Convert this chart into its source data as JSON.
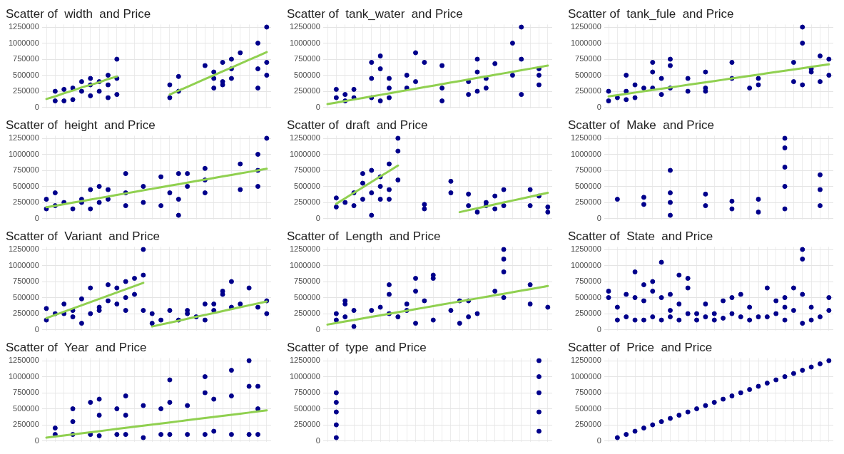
{
  "chart_data": [
    {
      "type": "scatter",
      "title": "Scatter of  width  and Price",
      "categories": [
        null,
        null,
        null,
        null,
        null,
        null,
        null,
        null,
        null,
        null,
        null,
        null,
        null,
        null,
        null,
        null,
        null,
        null,
        null,
        null,
        null,
        null,
        null,
        null,
        null,
        null
      ],
      "ylim": [
        -20000,
        1290000
      ],
      "yticks": [
        0,
        250000,
        500000,
        750000,
        1000000,
        1250000
      ],
      "grid": true,
      "legend": false,
      "tick_labels": "y",
      "marker": "circle",
      "series": [
        {
          "color": "#00008b",
          "values": [
            null,
            100000,
            100000,
            120000,
            250000,
            180000,
            250000,
            150000,
            200000,
            null,
            null,
            null,
            null,
            null,
            150000,
            250000,
            null,
            null,
            650000,
            300000,
            350000,
            450000,
            850000,
            null,
            300000,
            500000
          ]
        },
        {
          "color": "#00008b",
          "values": [
            null,
            250000,
            280000,
            300000,
            400000,
            350000,
            400000,
            350000,
            450000,
            null,
            null,
            null,
            null,
            null,
            350000,
            480000,
            null,
            null,
            null,
            450000,
            400000,
            600000,
            null,
            null,
            600000,
            700000
          ]
        },
        {
          "color": "#00008b",
          "values": [
            null,
            null,
            null,
            null,
            null,
            450000,
            null,
            500000,
            750000,
            null,
            null,
            null,
            null,
            null,
            null,
            null,
            null,
            null,
            null,
            550000,
            700000,
            750000,
            null,
            null,
            1000000,
            1250000
          ]
        },
        {
          "type": "line",
          "marker": "none",
          "color": "#90d050",
          "values": [
            130000,
            170000,
            220000,
            260000,
            310000,
            350000,
            390000,
            440000,
            480000,
            null,
            null,
            null,
            null,
            null,
            null,
            null,
            null,
            null,
            null,
            null,
            null,
            null,
            null,
            null,
            null,
            null
          ]
        },
        {
          "type": "line",
          "marker": "none",
          "color": "#90d050",
          "values": [
            null,
            null,
            null,
            null,
            null,
            null,
            null,
            null,
            null,
            null,
            null,
            null,
            null,
            null,
            200000,
            260000,
            320000,
            380000,
            440000,
            500000,
            560000,
            620000,
            680000,
            740000,
            800000,
            860000
          ]
        }
      ]
    },
    {
      "type": "scatter",
      "title": "Scatter of  tank_water  and Price",
      "categories": [
        null,
        null,
        null,
        null,
        null,
        null,
        null,
        null,
        null,
        null,
        null,
        null,
        null,
        null,
        null,
        null,
        null,
        null,
        null,
        null,
        null,
        null,
        null,
        null,
        null,
        null
      ],
      "ylim": [
        -20000,
        1290000
      ],
      "yticks": [
        0,
        250000,
        500000,
        750000,
        1000000,
        1250000
      ],
      "grid": true,
      "legend": false,
      "tick_labels": "y",
      "marker": "circle",
      "series": [
        {
          "color": "#00008b",
          "values": [
            null,
            150000,
            100000,
            150000,
            null,
            150000,
            100000,
            150000,
            null,
            300000,
            400000,
            700000,
            null,
            100000,
            null,
            null,
            200000,
            250000,
            300000,
            680000,
            null,
            500000,
            200000,
            null,
            350000,
            null
          ]
        },
        {
          "color": "#00008b",
          "values": [
            null,
            280000,
            200000,
            280000,
            null,
            450000,
            600000,
            300000,
            null,
            500000,
            850000,
            null,
            null,
            300000,
            null,
            null,
            400000,
            550000,
            450000,
            null,
            null,
            1000000,
            750000,
            null,
            500000,
            null
          ]
        },
        {
          "color": "#00008b",
          "values": [
            null,
            null,
            null,
            null,
            null,
            700000,
            800000,
            450000,
            null,
            null,
            null,
            null,
            null,
            650000,
            null,
            null,
            null,
            750000,
            null,
            null,
            null,
            null,
            1250000,
            null,
            600000,
            null
          ]
        },
        {
          "type": "line",
          "marker": "none",
          "color": "#90d050",
          "values": [
            50000,
            74000,
            98000,
            122000,
            146000,
            170000,
            194000,
            218000,
            242000,
            266000,
            290000,
            314000,
            338000,
            362000,
            386000,
            410000,
            434000,
            458000,
            482000,
            506000,
            530000,
            554000,
            578000,
            602000,
            626000,
            650000
          ]
        }
      ]
    },
    {
      "type": "scatter",
      "title": "Scatter of  tank_fule  and Price",
      "categories": [
        null,
        null,
        null,
        null,
        null,
        null,
        null,
        null,
        null,
        null,
        null,
        null,
        null,
        null,
        null,
        null,
        null,
        null,
        null,
        null,
        null,
        null,
        null,
        null,
        null,
        null
      ],
      "ylim": [
        -20000,
        1290000
      ],
      "yticks": [
        0,
        250000,
        500000,
        750000,
        1000000,
        1250000
      ],
      "grid": true,
      "legend": false,
      "tick_labels": "y",
      "marker": "circle",
      "series": [
        {
          "color": "#00008b",
          "values": [
            100000,
            150000,
            120000,
            150000,
            300000,
            300000,
            200000,
            300000,
            null,
            250000,
            null,
            250000,
            null,
            null,
            450000,
            null,
            300000,
            350000,
            null,
            null,
            null,
            400000,
            350000,
            550000,
            400000,
            500000
          ]
        },
        {
          "color": "#00008b",
          "values": [
            250000,
            null,
            250000,
            350000,
            null,
            550000,
            450000,
            650000,
            null,
            450000,
            null,
            300000,
            null,
            null,
            700000,
            null,
            null,
            450000,
            null,
            null,
            null,
            700000,
            1000000,
            600000,
            800000,
            750000
          ]
        },
        {
          "color": "#00008b",
          "values": [
            null,
            null,
            500000,
            null,
            null,
            700000,
            null,
            750000,
            null,
            null,
            null,
            550000,
            null,
            null,
            null,
            null,
            null,
            null,
            null,
            null,
            null,
            null,
            1250000,
            null,
            null,
            null
          ]
        },
        {
          "type": "line",
          "marker": "none",
          "color": "#90d050",
          "values": [
            170000,
            190000,
            210000,
            230000,
            250000,
            270000,
            290000,
            310000,
            330000,
            350000,
            370000,
            390000,
            410000,
            430000,
            450000,
            470000,
            490000,
            510000,
            530000,
            550000,
            570000,
            590000,
            610000,
            630000,
            650000,
            670000
          ]
        }
      ]
    },
    {
      "type": "scatter",
      "title": "Scatter of  height  and Price",
      "categories": [
        null,
        null,
        null,
        null,
        null,
        null,
        null,
        null,
        null,
        null,
        null,
        null,
        null,
        null,
        null,
        null,
        null,
        null,
        null,
        null,
        null,
        null,
        null,
        null,
        null,
        null
      ],
      "ylim": [
        -20000,
        1290000
      ],
      "yticks": [
        0,
        250000,
        500000,
        750000,
        1000000,
        1250000
      ],
      "grid": true,
      "legend": false,
      "tick_labels": "y",
      "marker": "circle",
      "series": [
        {
          "color": "#00008b",
          "values": [
            150000,
            200000,
            250000,
            150000,
            250000,
            150000,
            250000,
            300000,
            null,
            200000,
            null,
            250000,
            null,
            200000,
            400000,
            50000,
            500000,
            null,
            400000,
            null,
            null,
            null,
            450000,
            null,
            500000,
            1250000
          ]
        },
        {
          "color": "#00008b",
          "values": [
            300000,
            400000,
            null,
            null,
            300000,
            450000,
            500000,
            450000,
            null,
            400000,
            null,
            500000,
            null,
            650000,
            null,
            300000,
            700000,
            null,
            600000,
            null,
            null,
            null,
            850000,
            null,
            750000,
            null
          ]
        },
        {
          "color": "#00008b",
          "values": [
            null,
            null,
            null,
            null,
            null,
            null,
            null,
            null,
            null,
            700000,
            null,
            null,
            null,
            null,
            null,
            700000,
            null,
            null,
            780000,
            null,
            null,
            null,
            null,
            null,
            1000000,
            null
          ]
        },
        {
          "type": "line",
          "marker": "none",
          "color": "#90d050",
          "values": [
            175000,
            199000,
            223000,
            247000,
            271000,
            295000,
            319000,
            343000,
            367000,
            391000,
            415000,
            439000,
            463000,
            487000,
            511000,
            535000,
            559000,
            583000,
            607000,
            631000,
            655000,
            679000,
            703000,
            727000,
            751000,
            775000
          ]
        }
      ]
    },
    {
      "type": "scatter",
      "title": "Scatter of  draft  and Price",
      "categories": [
        null,
        null,
        null,
        null,
        null,
        null,
        null,
        null,
        null,
        null,
        null,
        null,
        null,
        null,
        null,
        null,
        null,
        null,
        null,
        null,
        null,
        null,
        null,
        null,
        null,
        null
      ],
      "ylim": [
        -20000,
        1290000
      ],
      "yticks": [
        0,
        250000,
        500000,
        750000,
        1000000,
        1250000
      ],
      "grid": true,
      "legend": false,
      "tick_labels": "y",
      "marker": "circle",
      "series": [
        {
          "color": "#00008b",
          "values": [
            null,
            180000,
            250000,
            200000,
            300000,
            50000,
            300000,
            300000,
            600000,
            null,
            null,
            150000,
            null,
            null,
            400000,
            null,
            200000,
            100000,
            200000,
            150000,
            200000,
            null,
            null,
            200000,
            350000,
            100000
          ]
        },
        {
          "color": "#00008b",
          "values": [
            null,
            320000,
            null,
            400000,
            550000,
            400000,
            500000,
            450000,
            1050000,
            null,
            null,
            220000,
            null,
            null,
            580000,
            null,
            380000,
            null,
            250000,
            350000,
            450000,
            null,
            null,
            450000,
            null,
            180000
          ]
        },
        {
          "color": "#00008b",
          "values": [
            null,
            null,
            null,
            null,
            700000,
            750000,
            650000,
            850000,
            1250000,
            null,
            null,
            null,
            null,
            null,
            null,
            null,
            null,
            null,
            null,
            null,
            null,
            null,
            null,
            null,
            null,
            null
          ]
        },
        {
          "type": "line",
          "marker": "none",
          "color": "#90d050",
          "values": [
            null,
            230000,
            315000,
            400000,
            485000,
            570000,
            655000,
            740000,
            825000,
            null,
            null,
            null,
            null,
            null,
            null,
            null,
            null,
            null,
            null,
            null,
            null,
            null,
            null,
            null,
            null,
            null
          ]
        },
        {
          "type": "line",
          "marker": "none",
          "color": "#90d050",
          "values": [
            null,
            null,
            null,
            null,
            null,
            null,
            null,
            null,
            null,
            null,
            null,
            null,
            null,
            null,
            null,
            100000,
            130000,
            160000,
            190000,
            220000,
            250000,
            280000,
            310000,
            340000,
            370000,
            400000
          ]
        }
      ]
    },
    {
      "type": "scatter",
      "title": "Scatter of  Make  and Price",
      "categories": [
        null,
        null,
        null,
        null,
        null,
        null,
        null,
        null,
        null,
        null,
        null,
        null,
        null,
        null,
        null,
        null,
        null,
        null,
        null,
        null,
        null,
        null,
        null,
        null,
        null,
        null
      ],
      "ylim": [
        -20000,
        1290000
      ],
      "yticks": [
        0,
        250000,
        500000,
        750000,
        1000000,
        1250000
      ],
      "grid": true,
      "legend": false,
      "tick_labels": "y",
      "marker": "circle",
      "series": [
        {
          "color": "#00008b",
          "values": [
            null,
            300000,
            null,
            null,
            220000,
            null,
            null,
            50000,
            null,
            null,
            null,
            200000,
            null,
            null,
            150000,
            null,
            null,
            100000,
            null,
            null,
            150000,
            null,
            null,
            null,
            200000,
            null
          ]
        },
        {
          "color": "#00008b",
          "values": [
            null,
            null,
            null,
            null,
            330000,
            null,
            null,
            250000,
            null,
            null,
            null,
            380000,
            null,
            null,
            270000,
            null,
            null,
            300000,
            null,
            null,
            500000,
            null,
            null,
            null,
            450000,
            null
          ]
        },
        {
          "color": "#00008b",
          "values": [
            null,
            null,
            null,
            null,
            null,
            null,
            null,
            400000,
            null,
            null,
            null,
            null,
            null,
            null,
            null,
            null,
            null,
            null,
            null,
            null,
            800000,
            null,
            null,
            null,
            680000,
            null
          ]
        },
        {
          "color": "#00008b",
          "values": [
            null,
            null,
            null,
            null,
            null,
            null,
            null,
            750000,
            null,
            null,
            null,
            null,
            null,
            null,
            null,
            null,
            null,
            null,
            null,
            null,
            1100000,
            null,
            null,
            null,
            null,
            null
          ]
        },
        {
          "color": "#00008b",
          "values": [
            null,
            null,
            null,
            null,
            null,
            null,
            null,
            null,
            null,
            null,
            null,
            null,
            null,
            null,
            null,
            null,
            null,
            null,
            null,
            null,
            1250000,
            null,
            null,
            null,
            null,
            null
          ]
        }
      ]
    },
    {
      "type": "scatter",
      "title": "Scatter of  Variant  and Price",
      "categories": [
        null,
        null,
        null,
        null,
        null,
        null,
        null,
        null,
        null,
        null,
        null,
        null,
        null,
        null,
        null,
        null,
        null,
        null,
        null,
        null,
        null,
        null,
        null,
        null,
        null,
        null
      ],
      "ylim": [
        -20000,
        1290000
      ],
      "yticks": [
        0,
        250000,
        500000,
        750000,
        1000000,
        1250000
      ],
      "grid": true,
      "legend": false,
      "tick_labels": "y",
      "marker": "circle",
      "series": [
        {
          "color": "#00008b",
          "values": [
            150000,
            250000,
            250000,
            200000,
            100000,
            250000,
            300000,
            450000,
            400000,
            300000,
            550000,
            300000,
            100000,
            150000,
            300000,
            150000,
            250000,
            200000,
            150000,
            300000,
            550000,
            350000,
            400000,
            650000,
            350000,
            250000
          ]
        },
        {
          "color": "#00008b",
          "values": [
            330000,
            null,
            400000,
            300000,
            480000,
            650000,
            350000,
            700000,
            650000,
            500000,
            800000,
            850000,
            250000,
            null,
            null,
            null,
            300000,
            null,
            400000,
            400000,
            600000,
            750000,
            null,
            null,
            null,
            450000
          ]
        },
        {
          "color": "#00008b",
          "values": [
            null,
            null,
            null,
            null,
            null,
            null,
            null,
            null,
            null,
            750000,
            null,
            1250000,
            null,
            null,
            null,
            null,
            null,
            null,
            null,
            null,
            null,
            null,
            null,
            null,
            null,
            null
          ]
        },
        {
          "type": "line",
          "marker": "none",
          "color": "#90d050",
          "values": [
            180000,
            230000,
            280000,
            330000,
            380000,
            430000,
            480000,
            530000,
            580000,
            630000,
            680000,
            730000,
            null,
            null,
            null,
            null,
            null,
            null,
            null,
            null,
            null,
            null,
            null,
            null,
            null,
            null
          ]
        },
        {
          "type": "line",
          "marker": "none",
          "color": "#90d050",
          "values": [
            null,
            null,
            null,
            null,
            null,
            null,
            null,
            null,
            null,
            null,
            null,
            null,
            50000,
            80000,
            110000,
            140000,
            170000,
            200000,
            230000,
            260000,
            290000,
            320000,
            350000,
            380000,
            410000,
            440000
          ]
        }
      ]
    },
    {
      "type": "scatter",
      "title": "Scatter of  Length  and Price",
      "categories": [
        null,
        null,
        null,
        null,
        null,
        null,
        null,
        null,
        null,
        null,
        null,
        null,
        null,
        null,
        null,
        null,
        null,
        null,
        null,
        null,
        null,
        null,
        null,
        null,
        null,
        null
      ],
      "ylim": [
        -20000,
        1290000
      ],
      "yticks": [
        0,
        250000,
        500000,
        750000,
        1000000,
        1250000
      ],
      "grid": true,
      "legend": false,
      "tick_labels": "y",
      "marker": "circle",
      "series": [
        {
          "color": "#00008b",
          "values": [
            null,
            150000,
            200000,
            50000,
            null,
            300000,
            350000,
            250000,
            200000,
            300000,
            100000,
            450000,
            150000,
            null,
            300000,
            100000,
            200000,
            250000,
            null,
            600000,
            500000,
            null,
            null,
            400000,
            null,
            350000
          ]
        },
        {
          "color": "#00008b",
          "values": [
            null,
            250000,
            400000,
            300000,
            null,
            null,
            null,
            550000,
            null,
            400000,
            600000,
            null,
            800000,
            null,
            null,
            450000,
            450000,
            null,
            null,
            null,
            900000,
            null,
            null,
            700000,
            null,
            null
          ]
        },
        {
          "color": "#00008b",
          "values": [
            null,
            null,
            450000,
            null,
            null,
            null,
            null,
            700000,
            null,
            null,
            800000,
            null,
            850000,
            null,
            null,
            null,
            null,
            null,
            null,
            null,
            1100000,
            null,
            null,
            null,
            null,
            null
          ]
        },
        {
          "color": "#00008b",
          "values": [
            null,
            null,
            null,
            null,
            null,
            null,
            null,
            null,
            null,
            null,
            null,
            null,
            null,
            null,
            null,
            null,
            null,
            null,
            null,
            null,
            1250000,
            null,
            null,
            null,
            null,
            null
          ]
        },
        {
          "type": "line",
          "marker": "none",
          "color": "#90d050",
          "values": [
            80000,
            104000,
            128000,
            152000,
            176000,
            200000,
            224000,
            248000,
            272000,
            296000,
            320000,
            344000,
            368000,
            392000,
            416000,
            440000,
            464000,
            488000,
            512000,
            536000,
            560000,
            584000,
            608000,
            632000,
            656000,
            680000
          ]
        }
      ]
    },
    {
      "type": "scatter",
      "title": "Scatter of  State  and Price",
      "categories": [
        null,
        null,
        null,
        null,
        null,
        null,
        null,
        null,
        null,
        null,
        null,
        null,
        null,
        null,
        null,
        null,
        null,
        null,
        null,
        null,
        null,
        null,
        null,
        null,
        null,
        null
      ],
      "ylim": [
        -20000,
        1290000
      ],
      "yticks": [
        0,
        250000,
        500000,
        750000,
        1000000,
        1250000
      ],
      "grid": true,
      "legend": false,
      "tick_labels": "y",
      "marker": "circle",
      "series": [
        {
          "color": "#00008b",
          "values": [
            500000,
            150000,
            200000,
            150000,
            150000,
            200000,
            150000,
            200000,
            150000,
            250000,
            150000,
            200000,
            150000,
            180000,
            250000,
            200000,
            150000,
            200000,
            200000,
            250000,
            150000,
            300000,
            100000,
            150000,
            200000,
            300000
          ]
        },
        {
          "color": "#00008b",
          "values": [
            600000,
            350000,
            550000,
            500000,
            450000,
            600000,
            500000,
            300000,
            400000,
            650000,
            250000,
            400000,
            250000,
            450000,
            500000,
            550000,
            350000,
            null,
            650000,
            450000,
            350000,
            650000,
            550000,
            350000,
            null,
            500000
          ]
        },
        {
          "color": "#00008b",
          "values": [
            null,
            null,
            null,
            900000,
            700000,
            750000,
            1050000,
            550000,
            850000,
            800000,
            null,
            null,
            null,
            null,
            null,
            null,
            null,
            null,
            null,
            null,
            500000,
            null,
            1100000,
            null,
            null,
            null
          ]
        },
        {
          "color": "#00008b",
          "values": [
            null,
            null,
            null,
            null,
            null,
            null,
            null,
            null,
            null,
            null,
            null,
            null,
            null,
            null,
            null,
            null,
            null,
            null,
            null,
            null,
            null,
            null,
            1250000,
            null,
            null,
            null
          ]
        }
      ]
    },
    {
      "type": "scatter",
      "title": "Scatter of  Year  and Price",
      "categories": [
        null,
        null,
        null,
        null,
        null,
        null,
        null,
        null,
        null,
        null,
        null,
        null,
        null,
        null,
        null,
        null,
        null,
        null,
        null,
        null,
        null,
        null,
        null,
        null,
        null,
        null
      ],
      "ylim": [
        -20000,
        1290000
      ],
      "yticks": [
        0,
        250000,
        500000,
        750000,
        1000000,
        1250000
      ],
      "grid": true,
      "legend": false,
      "tick_labels": "y",
      "marker": "circle",
      "series": [
        {
          "color": "#00008b",
          "values": [
            null,
            100000,
            null,
            100000,
            null,
            100000,
            80000,
            null,
            100000,
            100000,
            null,
            50000,
            null,
            100000,
            100000,
            null,
            100000,
            null,
            100000,
            150000,
            null,
            100000,
            null,
            100000,
            100000,
            null
          ]
        },
        {
          "color": "#00008b",
          "values": [
            null,
            200000,
            null,
            300000,
            null,
            600000,
            400000,
            null,
            500000,
            400000,
            null,
            550000,
            null,
            500000,
            600000,
            null,
            550000,
            null,
            750000,
            650000,
            null,
            700000,
            null,
            850000,
            500000,
            null
          ]
        },
        {
          "color": "#00008b",
          "values": [
            null,
            null,
            null,
            500000,
            null,
            null,
            650000,
            null,
            null,
            700000,
            null,
            null,
            null,
            null,
            950000,
            null,
            null,
            null,
            1000000,
            null,
            null,
            1100000,
            null,
            1250000,
            850000,
            null
          ]
        },
        {
          "type": "line",
          "marker": "none",
          "color": "#90d050",
          "values": [
            50000,
            67000,
            84000,
            101000,
            118000,
            135000,
            152000,
            169000,
            186000,
            203000,
            220000,
            237000,
            254000,
            271000,
            288000,
            305000,
            322000,
            339000,
            356000,
            373000,
            390000,
            407000,
            424000,
            441000,
            458000,
            475000
          ]
        }
      ]
    },
    {
      "type": "scatter",
      "title": "Scatter of  type  and Price",
      "categories": [
        null,
        null,
        null,
        null,
        null,
        null,
        null,
        null,
        null,
        null,
        null,
        null,
        null,
        null,
        null,
        null,
        null,
        null,
        null,
        null,
        null,
        null,
        null,
        null,
        null,
        null
      ],
      "ylim": [
        -20000,
        1290000
      ],
      "yticks": [
        0,
        250000,
        500000,
        750000,
        1000000,
        1250000
      ],
      "grid": true,
      "legend": false,
      "tick_labels": "y",
      "marker": "circle",
      "series": [
        {
          "color": "#00008b",
          "values": [
            null,
            50000,
            null,
            null,
            null,
            null,
            null,
            null,
            null,
            null,
            null,
            null,
            null,
            null,
            null,
            null,
            null,
            null,
            null,
            null,
            null,
            null,
            null,
            null,
            150000,
            null
          ]
        },
        {
          "color": "#00008b",
          "values": [
            null,
            250000,
            null,
            null,
            null,
            null,
            null,
            null,
            null,
            null,
            null,
            null,
            null,
            null,
            null,
            null,
            null,
            null,
            null,
            null,
            null,
            null,
            null,
            null,
            450000,
            null
          ]
        },
        {
          "color": "#00008b",
          "values": [
            null,
            450000,
            null,
            null,
            null,
            null,
            null,
            null,
            null,
            null,
            null,
            null,
            null,
            null,
            null,
            null,
            null,
            null,
            null,
            null,
            null,
            null,
            null,
            null,
            750000,
            null
          ]
        },
        {
          "color": "#00008b",
          "values": [
            null,
            600000,
            null,
            null,
            null,
            null,
            null,
            null,
            null,
            null,
            null,
            null,
            null,
            null,
            null,
            null,
            null,
            null,
            null,
            null,
            null,
            null,
            null,
            null,
            1000000,
            null
          ]
        },
        {
          "color": "#00008b",
          "values": [
            null,
            750000,
            null,
            null,
            null,
            null,
            null,
            null,
            null,
            null,
            null,
            null,
            null,
            null,
            null,
            null,
            null,
            null,
            null,
            null,
            null,
            null,
            null,
            null,
            1250000,
            null
          ]
        }
      ]
    },
    {
      "type": "scatter",
      "title": "Scatter of  Price  and Price",
      "categories": [
        null,
        null,
        null,
        null,
        null,
        null,
        null,
        null,
        null,
        null,
        null,
        null,
        null,
        null,
        null,
        null,
        null,
        null,
        null,
        null,
        null,
        null,
        null,
        null,
        null,
        null
      ],
      "ylim": [
        -20000,
        1290000
      ],
      "yticks": [
        0,
        250000,
        500000,
        750000,
        1000000,
        1250000
      ],
      "grid": true,
      "legend": false,
      "tick_labels": "y",
      "marker": "circle",
      "series": [
        {
          "color": "#00008b",
          "values": [
            null,
            50000,
            100000,
            150000,
            200000,
            250000,
            300000,
            350000,
            400000,
            450000,
            500000,
            550000,
            600000,
            650000,
            700000,
            750000,
            800000,
            850000,
            900000,
            950000,
            1000000,
            1050000,
            1100000,
            1150000,
            1200000,
            1250000
          ]
        }
      ]
    }
  ]
}
